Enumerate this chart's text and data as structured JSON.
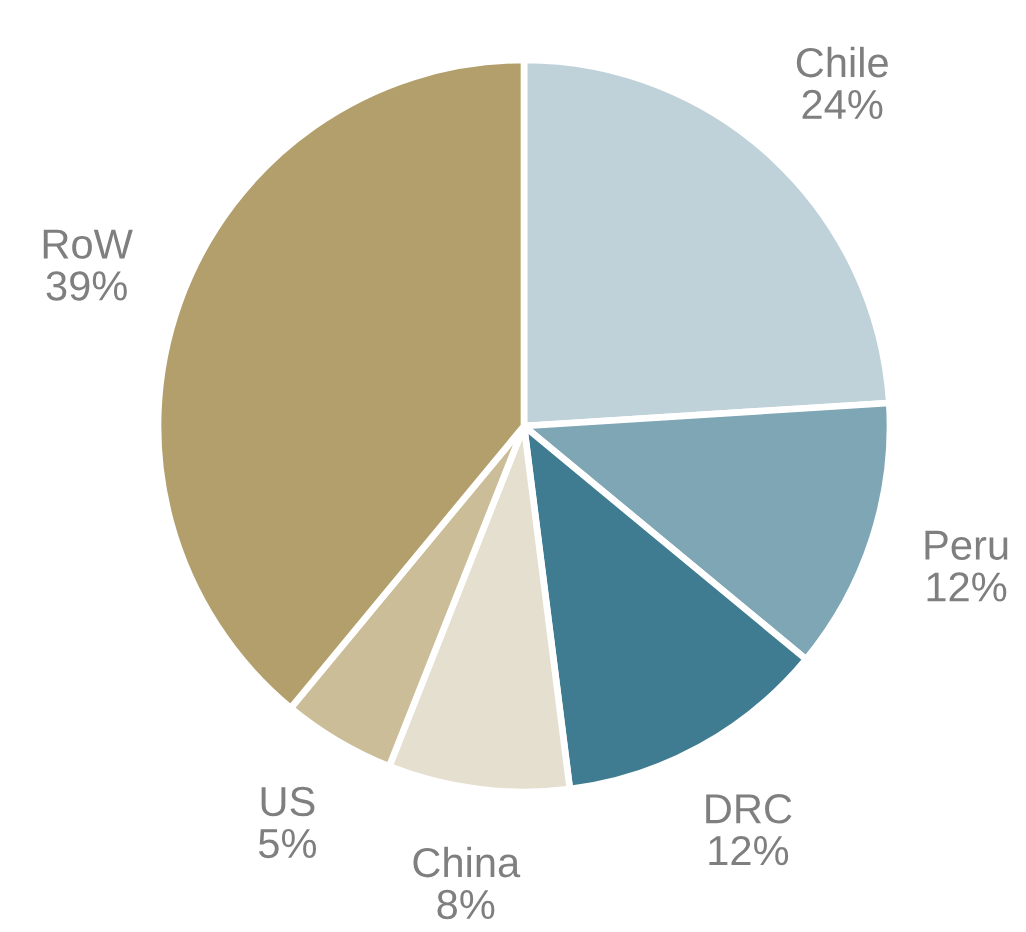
{
  "chart_data": {
    "type": "pie",
    "categories": [
      "Chile",
      "Peru",
      "DRC",
      "China",
      "US",
      "RoW"
    ],
    "values": [
      24,
      12,
      12,
      8,
      5,
      39
    ],
    "value_labels": [
      "24%",
      "12%",
      "12%",
      "8%",
      "5%",
      "39%"
    ],
    "colors": [
      "#bfd1d9",
      "#7fa6b5",
      "#3f7c91",
      "#e5dfcf",
      "#cbbd98",
      "#b39f6c"
    ],
    "legend": false
  }
}
